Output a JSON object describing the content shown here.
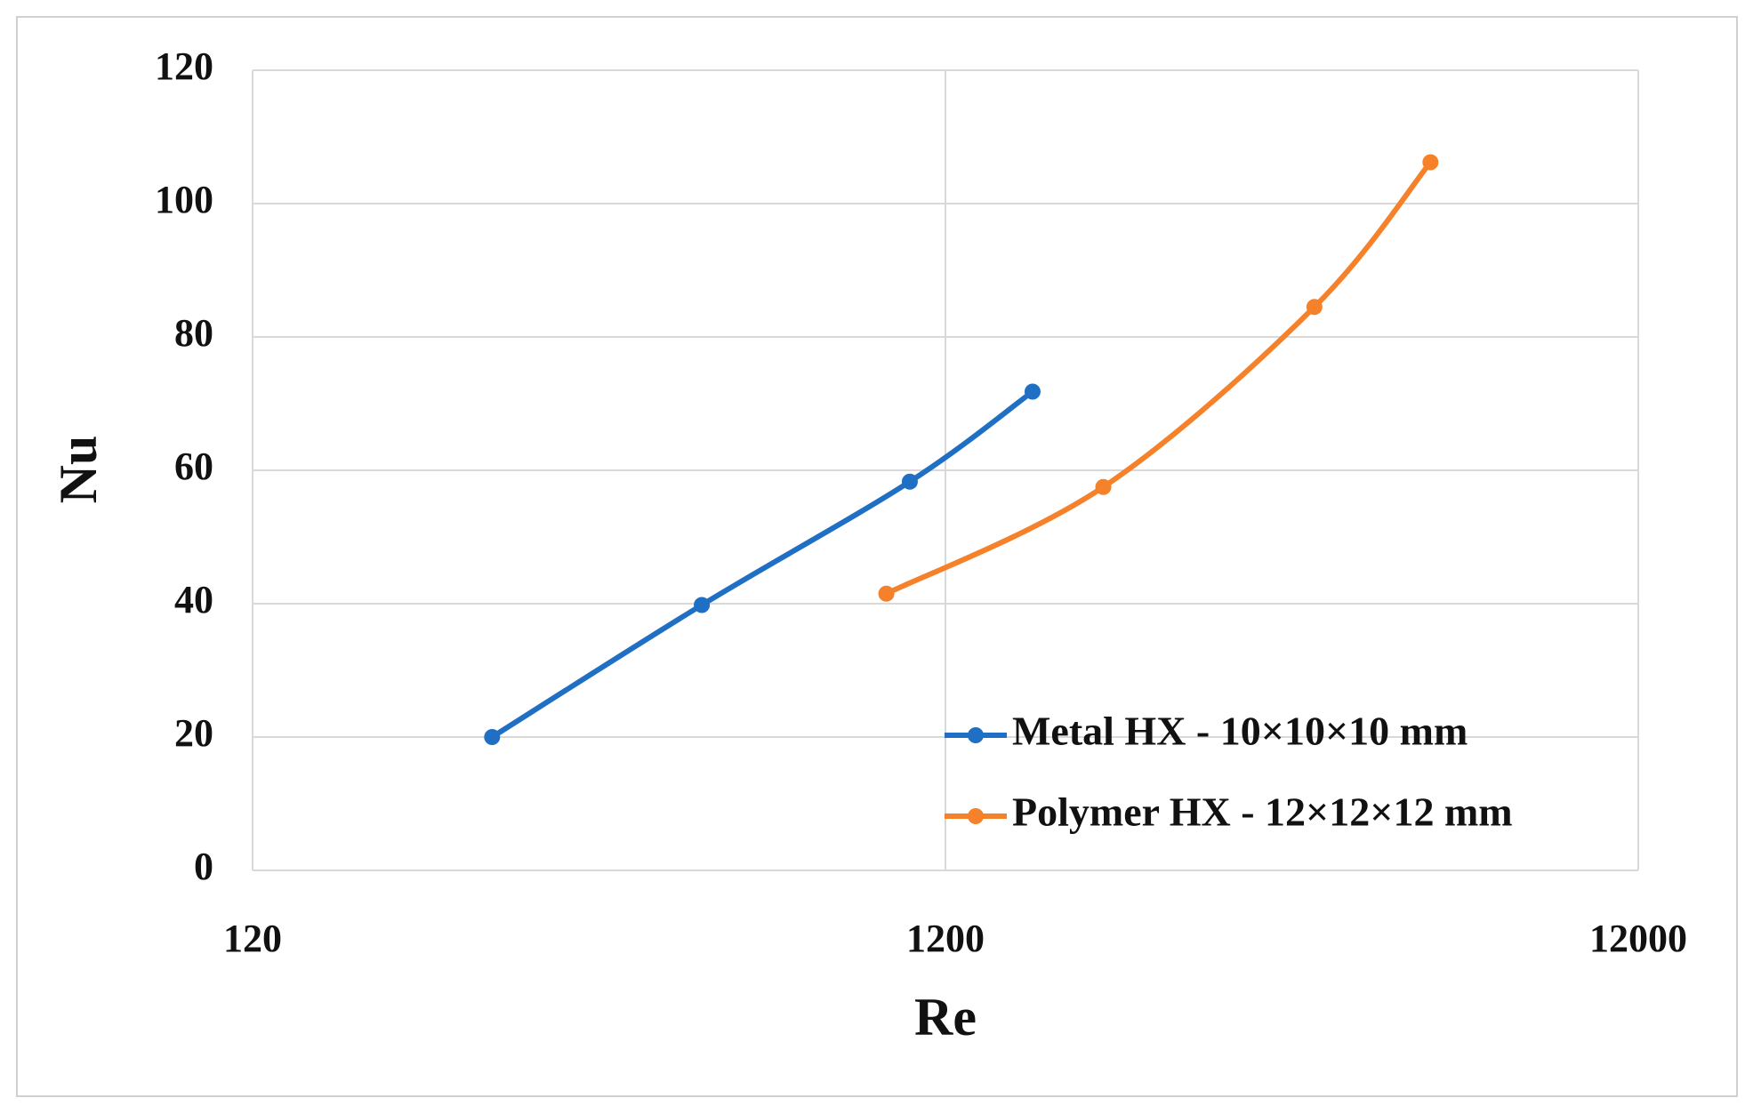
{
  "chart_data": {
    "type": "line",
    "x_label": "Re",
    "y_label": "Nu",
    "xscale": "log",
    "xlim": [
      120,
      12000
    ],
    "xticks": [
      120,
      1200,
      12000
    ],
    "ylim": [
      0,
      120
    ],
    "yticks": [
      0,
      20,
      40,
      60,
      80,
      100,
      120
    ],
    "grid": true,
    "smooth": true,
    "legend": "lower right",
    "series": [
      {
        "name": "Metal HX - 10×10×10 mm",
        "color": "#1f6fc5",
        "x": [
          266,
          534,
          1066,
          1603
        ],
        "values": [
          20,
          39.8,
          58.3,
          71.8
        ]
      },
      {
        "name": "Polymer HX - 12×12×12 mm",
        "color": "#f5822a",
        "x": [
          986,
          2028,
          4090,
          6015
        ],
        "values": [
          41.5,
          57.5,
          84.5,
          106.2
        ]
      }
    ]
  }
}
